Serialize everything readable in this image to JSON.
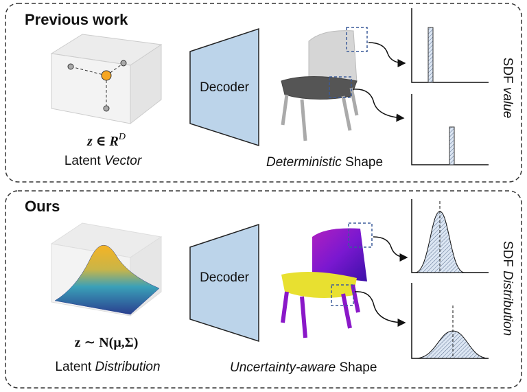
{
  "previous": {
    "title": "Previous work",
    "decoder": "Decoder",
    "latent_math": "z ∈ R",
    "latent_math_sup": "D",
    "latent_label": {
      "plain": "Latent",
      "emphasis": "Vector"
    },
    "shape_label": {
      "emphasis": "Deterministic",
      "plain": "Shape"
    },
    "output_label": {
      "plain": "SDF",
      "emphasis": "value"
    }
  },
  "ours": {
    "title": "Ours",
    "decoder": "Decoder",
    "latent_math": "z ∼ N(μ,Σ)",
    "latent_label": {
      "plain": "Latent",
      "emphasis": "Distribution"
    },
    "shape_label": {
      "emphasis": "Uncertainty-aware",
      "plain": "Shape"
    },
    "output_label": {
      "plain": "SDF",
      "emphasis": "Distribution"
    }
  }
}
